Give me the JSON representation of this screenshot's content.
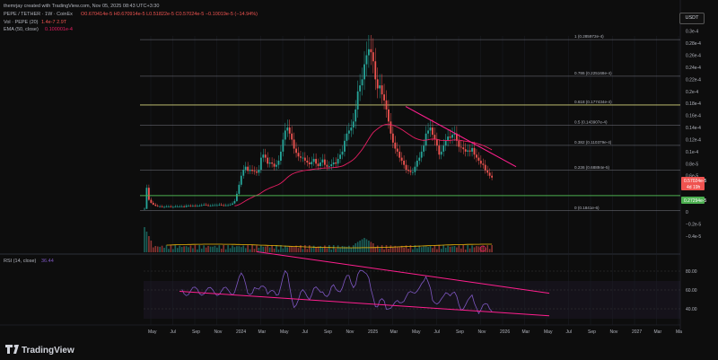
{
  "header": {
    "credit": "themrjay created with TradingView.com, Nov 05, 2025 08:43 UTC+3:30",
    "symbol_line": "PEPE / TETHER · 1W · CoinEx",
    "ohlc": "O0.670414e-5  H0.670914e-5  L0.51822e-5  C0.57024e-5  −0.10019e-5 (−14.94%)",
    "vol_line": "Vol · PEPE (20)",
    "vol_values": "1.4e-7  2.9T",
    "ema_line": "EMA (50, close)",
    "ema_value": "0.100001e-4",
    "quote_currency": "USDT",
    "rsi_line": "RSI (14, close)",
    "rsi_value": "36.44"
  },
  "colors": {
    "up": "#26a69a",
    "down": "#ef5350",
    "ema": "#e91e63",
    "trendline": "#ff1f8e",
    "support": "#4caf50",
    "rsi": "#7e57c2",
    "fib_0618": "#d4d37a"
  },
  "price_badges": {
    "current": "0.57024e-5",
    "countdown": "4d 19h",
    "support": "0.27294e-5"
  },
  "y_axis_ticks": [
    "0.3e-4",
    "0.28e-4",
    "0.26e-4",
    "0.24e-4",
    "0.22e-4",
    "0.2e-4",
    "0.18e-4",
    "0.16e-4",
    "0.14e-4",
    "0.12e-4",
    "0.1e-4",
    "0.8e-5",
    "0.6e-5",
    "0.4e-5",
    "0.2e-5",
    "0",
    "−0.2e-5",
    "−0.4e-5"
  ],
  "rsi_ticks": [
    "80.00",
    "60.00",
    "40.00"
  ],
  "x_axis_ticks": [
    "May",
    "Jul",
    "Sep",
    "Nov",
    "2024",
    "Mar",
    "May",
    "Jul",
    "Sep",
    "Nov",
    "2025",
    "Mar",
    "May",
    "Jul",
    "Sep",
    "Nov",
    "2026",
    "Mar",
    "May",
    "Jul",
    "Sep",
    "Nov",
    "2027",
    "Mar",
    "Ma"
  ],
  "fib_levels": [
    {
      "label": "1 (0.285972e-4)",
      "value": 0.285972
    },
    {
      "label": "0.786 (0.225168e-4)",
      "value": 0.225168
    },
    {
      "label": "0.618 (0.177434e-4)",
      "value": 0.177434
    },
    {
      "label": "0.5 (0.143907e-4)",
      "value": 0.143907
    },
    {
      "label": "0.382 (0.110379e-4)",
      "value": 0.110379
    },
    {
      "label": "0.236 (0.68894e-5)",
      "value": 0.068894
    },
    {
      "label": "0 (0.1841e-6)",
      "value": 0.001841
    }
  ],
  "logo": "TradingView",
  "chart_data": {
    "type": "candlestick",
    "title": "PEPE / TETHER · 1W · CoinEx",
    "y_unit": "1e-4 USDT",
    "ylim": [
      -0.045,
      0.31
    ],
    "candles_approx": [
      0.005,
      0.04,
      0.02,
      0.015,
      0.012,
      0.01,
      0.009,
      0.009,
      0.008,
      0.008,
      0.009,
      0.009,
      0.008,
      0.008,
      0.009,
      0.009,
      0.009,
      0.009,
      0.008,
      0.01,
      0.01,
      0.009,
      0.01,
      0.009,
      0.01,
      0.01,
      0.011,
      0.012,
      0.011,
      0.01,
      0.01,
      0.011,
      0.011,
      0.011,
      0.012,
      0.011,
      0.01,
      0.011,
      0.011,
      0.012,
      0.014,
      0.018,
      0.03,
      0.045,
      0.06,
      0.07,
      0.075,
      0.068,
      0.07,
      0.068,
      0.067,
      0.065,
      0.07,
      0.09,
      0.095,
      0.09,
      0.08,
      0.082,
      0.08,
      0.075,
      0.078,
      0.085,
      0.1,
      0.12,
      0.135,
      0.14,
      0.13,
      0.12,
      0.105,
      0.098,
      0.092,
      0.09,
      0.09,
      0.085,
      0.082,
      0.079,
      0.083,
      0.088,
      0.08,
      0.076,
      0.082,
      0.087,
      0.078,
      0.075,
      0.076,
      0.079,
      0.082,
      0.08,
      0.088,
      0.095,
      0.1,
      0.118,
      0.13,
      0.135,
      0.14,
      0.15,
      0.17,
      0.2,
      0.21,
      0.22,
      0.245,
      0.26,
      0.27,
      0.265,
      0.25,
      0.22,
      0.205,
      0.21,
      0.195,
      0.185,
      0.17,
      0.15,
      0.13,
      0.115,
      0.105,
      0.1,
      0.09,
      0.085,
      0.078,
      0.07,
      0.068,
      0.066,
      0.066,
      0.075,
      0.085,
      0.09,
      0.1,
      0.11,
      0.13,
      0.135,
      0.14,
      0.128,
      0.12,
      0.11,
      0.095,
      0.1,
      0.11,
      0.118,
      0.125,
      0.123,
      0.128,
      0.13,
      0.118,
      0.108,
      0.107,
      0.104,
      0.1,
      0.102,
      0.1,
      0.106,
      0.095,
      0.09,
      0.085,
      0.08,
      0.078,
      0.069,
      0.065,
      0.06,
      0.057
    ],
    "ema50_approx": "rises from ~0.01 (2024) to ~0.13 (Dec 2024), down to ~0.1 (Nov 2025)",
    "rsi_current": 36.44,
    "rsi_range": [
      20,
      95
    ]
  }
}
